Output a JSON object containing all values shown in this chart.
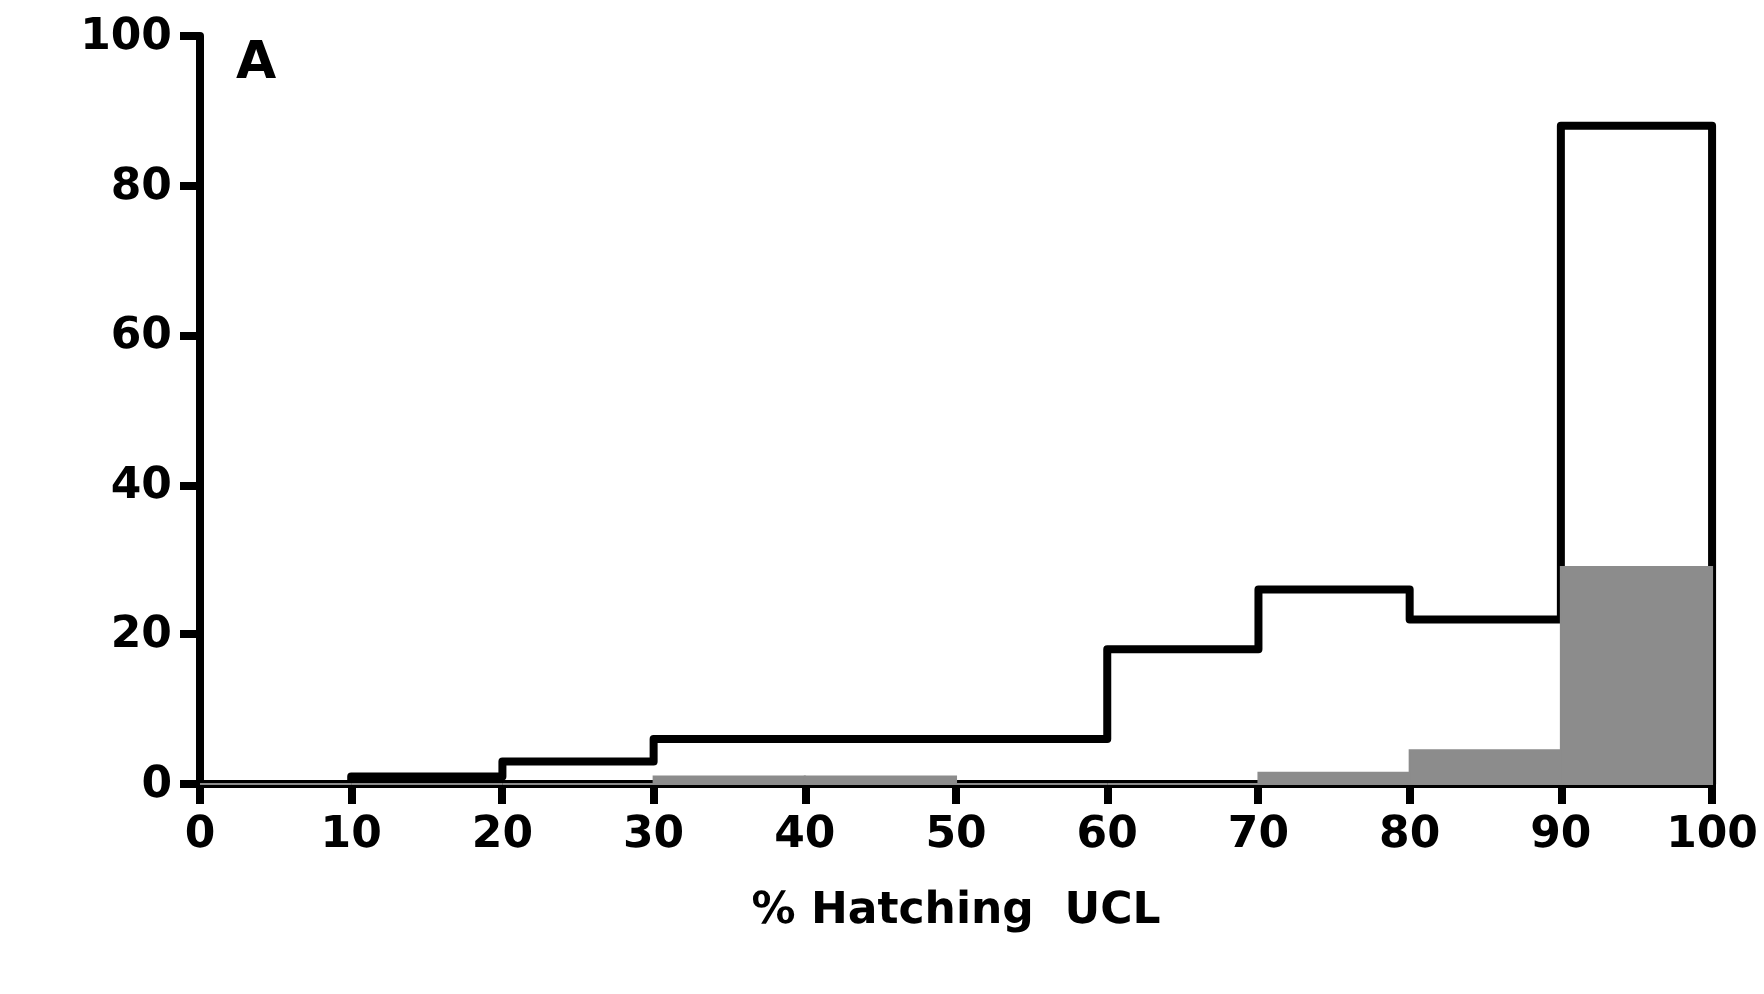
{
  "chart_data": {
    "type": "histogram",
    "xlabel": "% Hatching  UCL",
    "annotations": [
      "A"
    ],
    "bins": [
      0,
      10,
      20,
      30,
      40,
      50,
      60,
      70,
      80,
      90,
      100
    ],
    "series": [
      {
        "type": "step",
        "color": "#000000",
        "x": [
          0,
          10,
          20,
          30,
          40,
          50,
          60,
          70,
          80,
          90,
          100
        ],
        "values": [
          0,
          1,
          3,
          6,
          6,
          6,
          18,
          26,
          22,
          88,
          0
        ]
      },
      {
        "color": "#8c8c8c",
        "values": [
          0,
          0,
          0,
          1,
          1,
          0,
          0,
          1.5,
          4.5,
          29
        ]
      }
    ],
    "xlim": [
      0,
      100
    ],
    "xticks": [
      0,
      10,
      20,
      30,
      40,
      50,
      60,
      70,
      80,
      90,
      100
    ],
    "ylim": [
      0,
      100
    ],
    "yticks": [
      0,
      20,
      40,
      60,
      80,
      100
    ],
    "grid": false
  }
}
